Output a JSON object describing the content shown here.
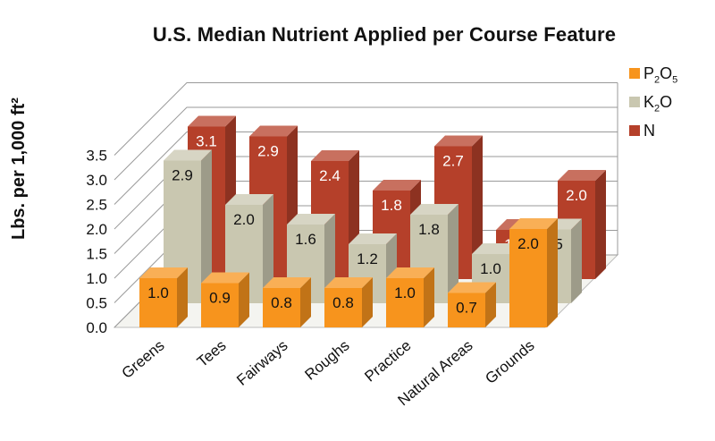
{
  "chart_data": {
    "type": "bar",
    "title": "U.S. Median Nutrient Applied per Course Feature",
    "ylabel": "Lbs. per 1,000 ft²",
    "xlabel": "",
    "categories": [
      "Greens",
      "Tees",
      "Fairways",
      "Roughs",
      "Practice",
      "Natural Areas",
      "Grounds"
    ],
    "series": [
      {
        "name": "P2O5",
        "values": [
          1.0,
          0.9,
          0.8,
          0.8,
          1.0,
          0.7,
          2.0
        ]
      },
      {
        "name": "K2O",
        "values": [
          2.9,
          2.0,
          1.6,
          1.2,
          1.8,
          1.0,
          1.5
        ]
      },
      {
        "name": "N",
        "values": [
          3.1,
          2.9,
          2.4,
          1.8,
          2.7,
          1.0,
          2.0
        ]
      }
    ],
    "ylim": [
      0,
      3.5
    ],
    "yticks": [
      "0.0",
      "0.5",
      "1.0",
      "1.5",
      "2.0",
      "2.5",
      "3.0",
      "3.5"
    ],
    "grid": true,
    "legend_position": "right",
    "colors": {
      "P2O5": "#f7941d",
      "K2O": "#c9c7b0",
      "N": "#b5402a"
    }
  }
}
